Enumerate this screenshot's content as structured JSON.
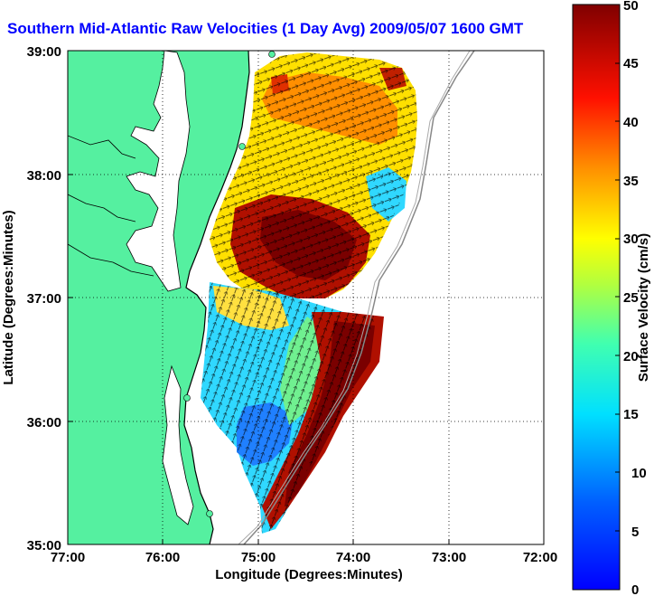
{
  "title": "Southern Mid-Atlantic Raw Velocities (1 Day Avg) 2009/05/07 1600 GMT",
  "xlabel": "Longitude (Degrees:Minutes)",
  "ylabel": "Latitude (Degrees:Minutes)",
  "colorbar_label": "Surface Velocity (cm/s)",
  "x_ticks": [
    "77:00",
    "76:00",
    "75:00",
    "74:00",
    "73:00",
    "72:00"
  ],
  "y_ticks": [
    "39:00",
    "38:00",
    "37:00",
    "36:00",
    "35:00"
  ],
  "colorbar_ticks": [
    "50",
    "45",
    "40",
    "35",
    "30",
    "25",
    "20",
    "15",
    "10",
    "5",
    "0"
  ],
  "colors": {
    "land": "#55f0a0",
    "title": "#0000ff",
    "grid": "#000000"
  }
}
